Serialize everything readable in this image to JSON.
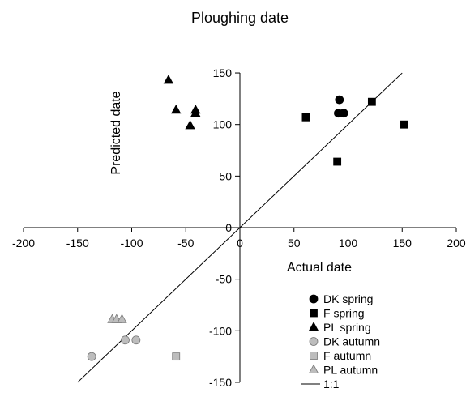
{
  "chart_data": {
    "type": "scatter",
    "title": "Ploughing date",
    "xlabel": "Actual date",
    "ylabel": "Predicted date",
    "xlim": [
      -200,
      200
    ],
    "ylim": [
      -150,
      150
    ],
    "x_ticks": [
      -200,
      -150,
      -100,
      -50,
      0,
      50,
      100,
      150,
      200
    ],
    "y_ticks": [
      -150,
      -100,
      -50,
      0,
      50,
      100,
      150
    ],
    "axes_style": "crossing at origin",
    "grid": false,
    "legend_position": "bottom-right",
    "series": [
      {
        "name": "DK spring",
        "marker": "circle",
        "color": "#000000",
        "points": [
          [
            92,
            124
          ],
          [
            91,
            111
          ],
          [
            96,
            111
          ]
        ]
      },
      {
        "name": "F spring",
        "marker": "square",
        "color": "#000000",
        "points": [
          [
            61,
            107
          ],
          [
            90,
            64
          ],
          [
            122,
            122
          ],
          [
            152,
            100
          ]
        ]
      },
      {
        "name": "PL spring",
        "marker": "triangle",
        "color": "#000000",
        "points": [
          [
            -66,
            143
          ],
          [
            -59,
            114
          ],
          [
            -46,
            99
          ],
          [
            -41,
            114
          ],
          [
            -41,
            111
          ]
        ]
      },
      {
        "name": "DK autumn",
        "marker": "circle",
        "color": "#bdbdbd",
        "points": [
          [
            -137,
            -125
          ],
          [
            -106,
            -109
          ],
          [
            -96,
            -109
          ]
        ]
      },
      {
        "name": "F autumn",
        "marker": "square",
        "color": "#bdbdbd",
        "points": [
          [
            -59,
            -125
          ]
        ]
      },
      {
        "name": "PL autumn",
        "marker": "triangle",
        "color": "#bdbdbd",
        "points": [
          [
            -118,
            -89
          ],
          [
            -114,
            -89
          ],
          [
            -109,
            -89
          ]
        ]
      }
    ],
    "reference_line": {
      "name": "1:1",
      "from": [
        -150,
        -150
      ],
      "to": [
        150,
        150
      ]
    }
  }
}
